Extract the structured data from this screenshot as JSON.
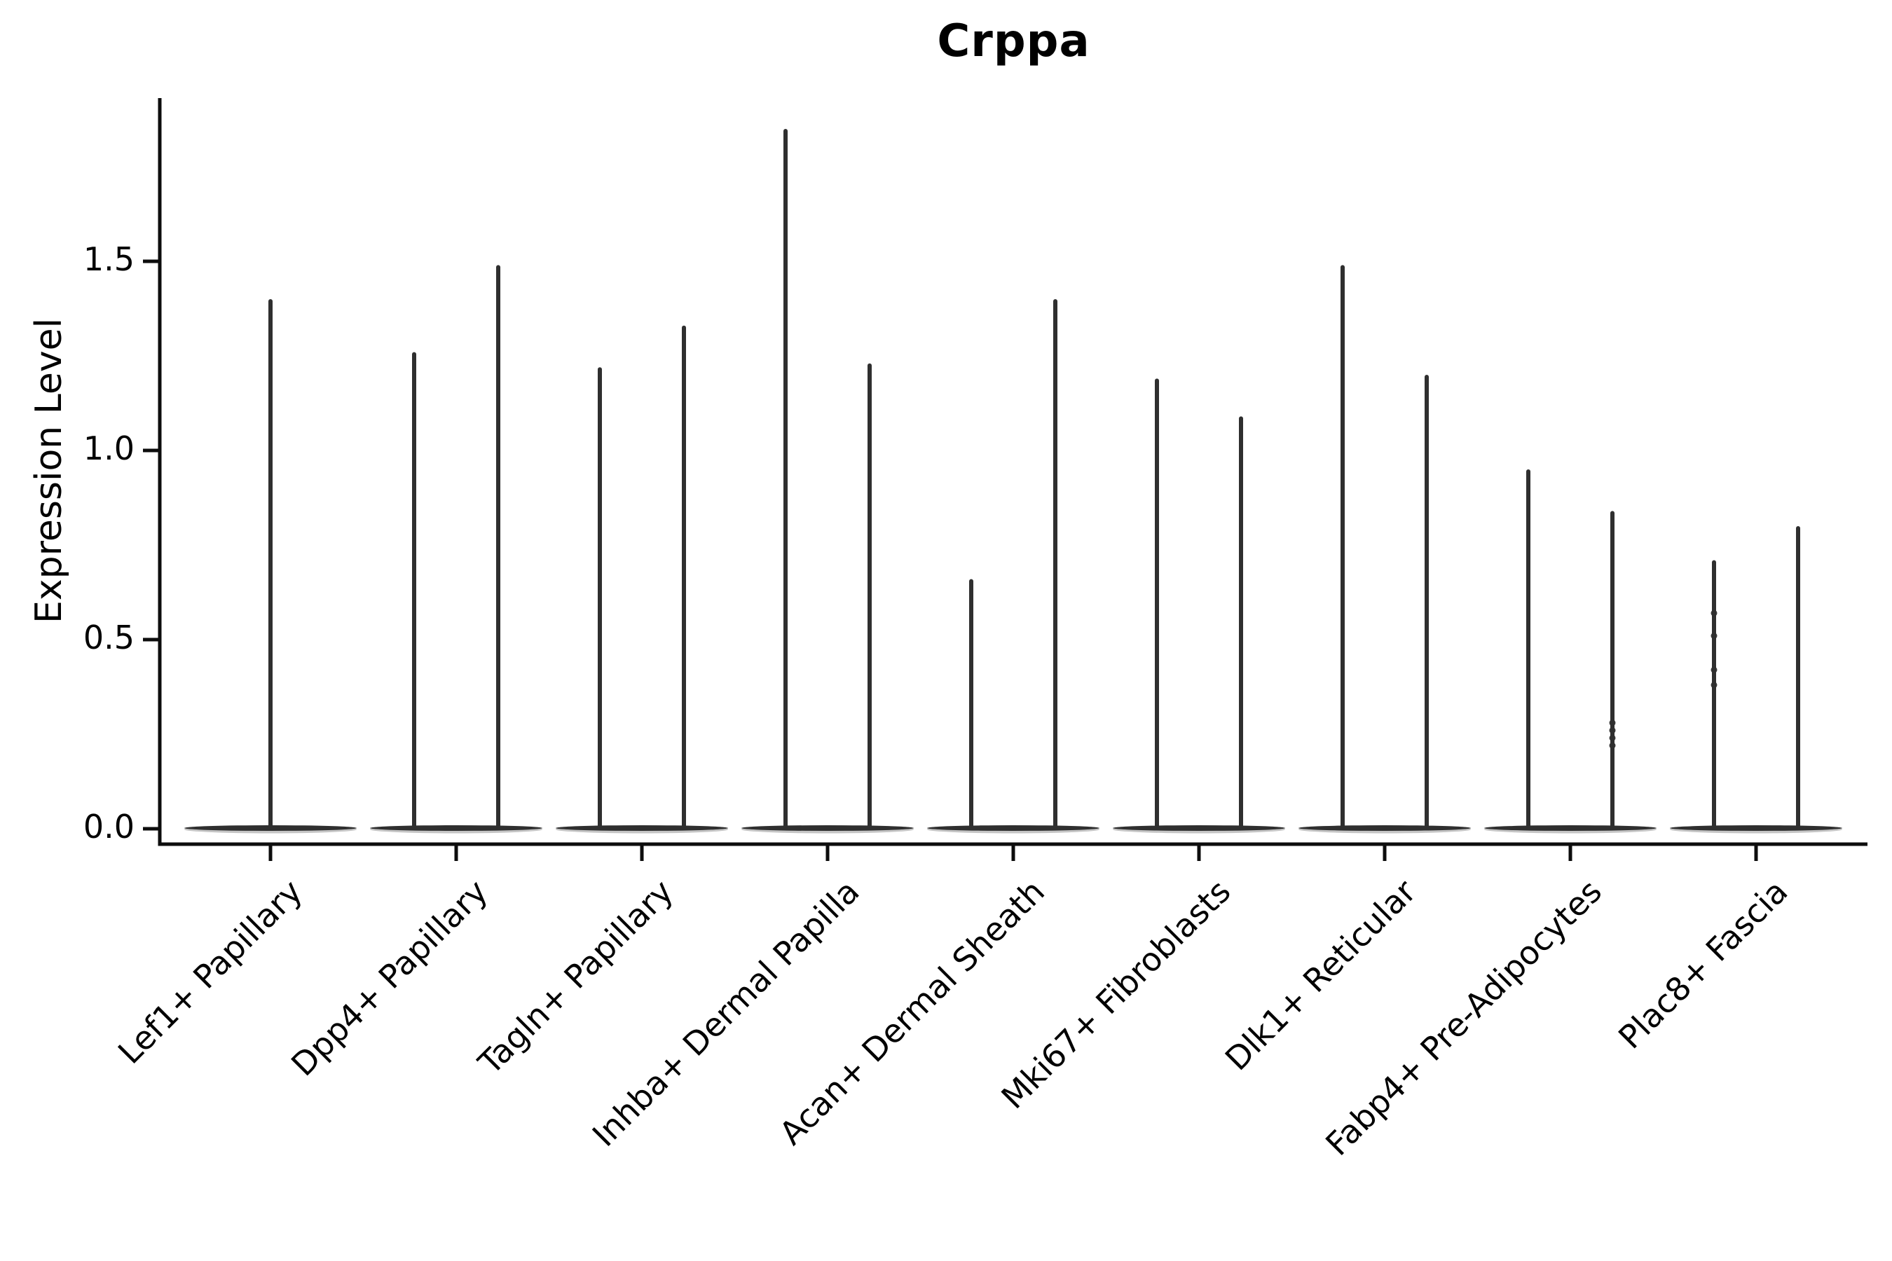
{
  "figure": {
    "background_color": "#ffffff",
    "ink_color": "#2f2f2f",
    "axis_color": "#0d0d0d"
  },
  "chart_data": {
    "type": "violin",
    "title": "Crppa",
    "title_style": "bold",
    "xlabel": "",
    "ylabel": "Expression Level",
    "yticks": [
      0.0,
      0.5,
      1.0,
      1.5
    ],
    "ytick_labels": [
      "0.0",
      "0.5",
      "1.0",
      "1.5"
    ],
    "ylim": [
      -0.04,
      1.93
    ],
    "grid": false,
    "legend": false,
    "description": "Seurat-style stacked violin plot of gene Crppa expression; violins are nearly all mass at 0 with thin spikes up to the max expression. Most categories show two thin spikes (two dodged violins); Lef1+ Papillary shows a single centered spike.",
    "categories": [
      "Lef1+ Papillary",
      "Dpp4+ Papillary",
      "Tagln+ Papillary",
      "Inhba+ Dermal Papilla",
      "Acan+ Dermal Sheath",
      "Mki67+ Fibroblasts",
      "Dlk1+ Reticular",
      "Fabp4+ Pre-Adipocytes",
      "Plac8+ Fascia"
    ],
    "baseline_value": 0.0,
    "violins": [
      {
        "category": "Lef1+ Papillary",
        "spikes": [
          {
            "side": "center",
            "max": 1.4
          }
        ]
      },
      {
        "category": "Dpp4+ Papillary",
        "spikes": [
          {
            "side": "left",
            "max": 1.26
          },
          {
            "side": "right",
            "max": 1.49
          }
        ]
      },
      {
        "category": "Tagln+ Papillary",
        "spikes": [
          {
            "side": "left",
            "max": 1.22
          },
          {
            "side": "right",
            "max": 1.33
          }
        ]
      },
      {
        "category": "Inhba+ Dermal Papilla",
        "spikes": [
          {
            "side": "left",
            "max": 1.85
          },
          {
            "side": "right",
            "max": 1.23
          }
        ]
      },
      {
        "category": "Acan+ Dermal Sheath",
        "spikes": [
          {
            "side": "left",
            "max": 0.66
          },
          {
            "side": "right",
            "max": 1.4
          }
        ]
      },
      {
        "category": "Mki67+ Fibroblasts",
        "spikes": [
          {
            "side": "left",
            "max": 1.19
          },
          {
            "side": "right",
            "max": 1.09
          }
        ]
      },
      {
        "category": "Dlk1+ Reticular",
        "spikes": [
          {
            "side": "left",
            "max": 1.49
          },
          {
            "side": "right",
            "max": 1.2
          }
        ]
      },
      {
        "category": "Fabp4+ Pre-Adipocytes",
        "spikes": [
          {
            "side": "left",
            "max": 0.95
          },
          {
            "side": "right",
            "max": 0.84
          }
        ]
      },
      {
        "category": "Plac8+ Fascia",
        "spikes": [
          {
            "side": "left",
            "max": 0.71
          },
          {
            "side": "right",
            "max": 0.8
          }
        ]
      }
    ],
    "outlier_points": [
      {
        "category": "Fabp4+ Pre-Adipocytes",
        "side": "right",
        "values": [
          0.28,
          0.26,
          0.24,
          0.22
        ]
      },
      {
        "category": "Plac8+ Fascia",
        "side": "left",
        "values": [
          0.57,
          0.51,
          0.42,
          0.38
        ]
      }
    ]
  }
}
